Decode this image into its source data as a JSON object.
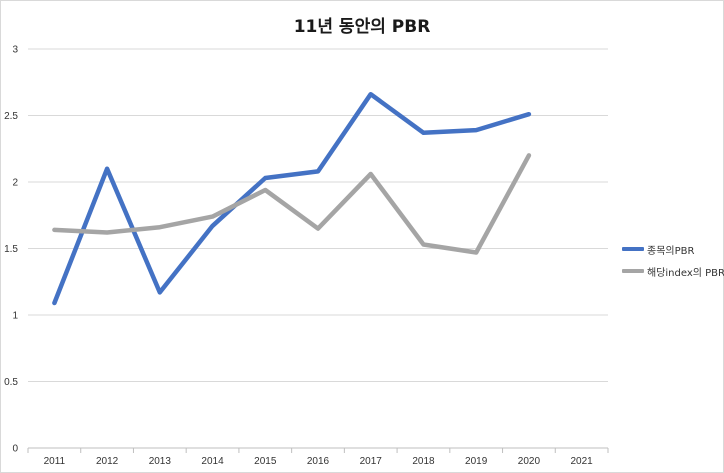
{
  "chart_data": {
    "type": "line",
    "title": "11년 동안의 PBR",
    "categories": [
      "2011",
      "2012",
      "2013",
      "2014",
      "2015",
      "2016",
      "2017",
      "2018",
      "2019",
      "2020",
      "2021"
    ],
    "ylim": [
      0,
      3
    ],
    "yticks": [
      "0",
      "0.5",
      "1",
      "1.5",
      "2",
      "2.5",
      "3"
    ],
    "grid": true,
    "legend_position": "right",
    "series": [
      {
        "name": "종목의PBR",
        "color": "#4472c4",
        "values": [
          1.09,
          2.1,
          1.17,
          1.67,
          2.03,
          2.08,
          2.66,
          2.37,
          2.39,
          2.51,
          null
        ]
      },
      {
        "name": "해당index의 PBR",
        "color": "#a5a5a5",
        "values": [
          1.64,
          1.62,
          1.66,
          1.74,
          1.94,
          1.65,
          2.06,
          1.53,
          1.47,
          2.2,
          null
        ]
      }
    ]
  }
}
